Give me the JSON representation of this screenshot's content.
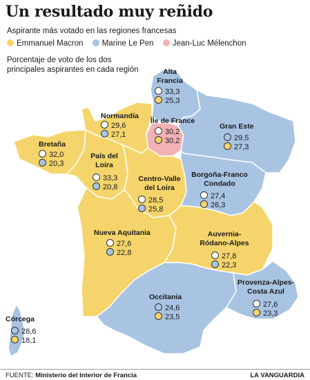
{
  "title": "Un resultado muy reñido",
  "subtitle": "Aspirante más votado en las regiones francesas",
  "legend": [
    {
      "label": "Emmanuel Macron",
      "color": "#f5d56b"
    },
    {
      "label": "Marine Le Pen",
      "color": "#a9c4e2"
    },
    {
      "label": "Jean-Luc Mélenchon",
      "color": "#f2b2b5"
    }
  ],
  "note": "Porcentaje de voto de los dos principales aspirantes en cada región",
  "colors": {
    "macron": "#f5d56b",
    "lepen": "#a9c4e2",
    "melenchon": "#f2b2b5",
    "border": "#ffffff"
  },
  "regions": [
    {
      "id": "alta-francia",
      "name": "Alta Francia",
      "winner": "lepen",
      "values": [
        "33,3",
        "25,3"
      ]
    },
    {
      "id": "normandia",
      "name": "Normandía",
      "winner": "macron",
      "values": [
        "29,6",
        "27,1"
      ]
    },
    {
      "id": "ile-de-france",
      "name": "Île de France",
      "winner": "melenchon",
      "values": [
        "30,2",
        "30,2"
      ]
    },
    {
      "id": "gran-este",
      "name": "Gran Este",
      "winner": "lepen",
      "values": [
        "29,5",
        "27,3"
      ]
    },
    {
      "id": "bretana",
      "name": "Bretaña",
      "winner": "macron",
      "values": [
        "32,0",
        "20,3"
      ]
    },
    {
      "id": "pais-del-loira",
      "name": "País del Loira",
      "winner": "macron",
      "values": [
        "33,3",
        "20,8"
      ]
    },
    {
      "id": "centro-valle-del-loira",
      "name": "Centro-Valle del Loira",
      "winner": "lepen",
      "values": [
        "28,5",
        "25,8"
      ]
    },
    {
      "id": "borgona-franco-condado",
      "name": "Borgoña-Franco Condado",
      "winner": "lepen",
      "values": [
        "27,4",
        "26,3"
      ]
    },
    {
      "id": "nueva-aquitania",
      "name": "Nueva Aquitania",
      "winner": "macron",
      "values": [
        "27,6",
        "22,8"
      ]
    },
    {
      "id": "auvernia-rodano-alpes",
      "name": "Auvernia-Ródano-Alpes",
      "winner": "macron",
      "values": [
        "27,8",
        "22,3"
      ]
    },
    {
      "id": "occitania",
      "name": "Occitania",
      "winner": "lepen",
      "values": [
        "24,6",
        "23,5"
      ]
    },
    {
      "id": "provenza-alpes-costa-azul",
      "name": "Provenza-Alpes-Costa Azul",
      "winner": "lepen",
      "values": [
        "27,6",
        "23,3"
      ]
    },
    {
      "id": "corcega",
      "name": "Córcega",
      "winner": "lepen",
      "values": [
        "28,6",
        "18,1"
      ]
    }
  ],
  "source_label": "FUENTE:",
  "source": "Ministerio del Interior de Francia",
  "brand": "LA VANGUARDIA"
}
